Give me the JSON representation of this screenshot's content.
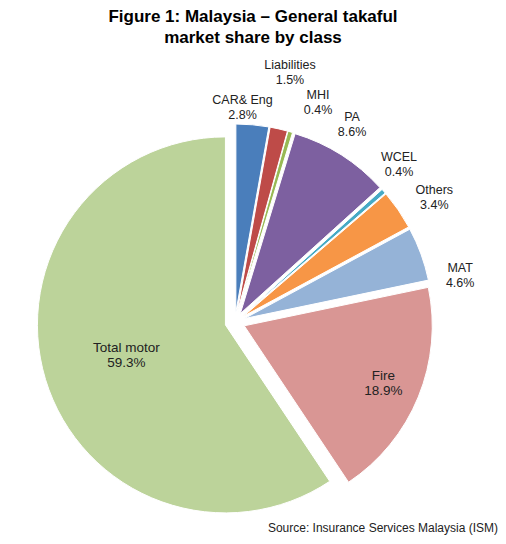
{
  "chart_data": {
    "type": "pie",
    "title": "Figure 1: Malaysia – General takaful market share by class",
    "categories": [
      "CAR& Eng",
      "Liabilities",
      "MHI",
      "PA",
      "WCEL",
      "Others",
      "MAT",
      "Fire",
      "Total motor"
    ],
    "values": [
      2.8,
      1.5,
      0.4,
      8.6,
      0.4,
      3.4,
      4.6,
      18.9,
      59.3
    ],
    "value_labels": [
      "2.8%",
      "1.5%",
      "0.4%",
      "8.6%",
      "0.4%",
      "3.4%",
      "4.6%",
      "18.9%",
      "59.3%"
    ],
    "colors": [
      "#4a7ebb",
      "#be4b48",
      "#98b954",
      "#7d60a0",
      "#46aac5",
      "#f79646",
      "#95b3d7",
      "#d99694",
      "#bcd39a"
    ],
    "data_labels": true,
    "source": "Source: Insurance Services Malaysia (ISM)"
  }
}
